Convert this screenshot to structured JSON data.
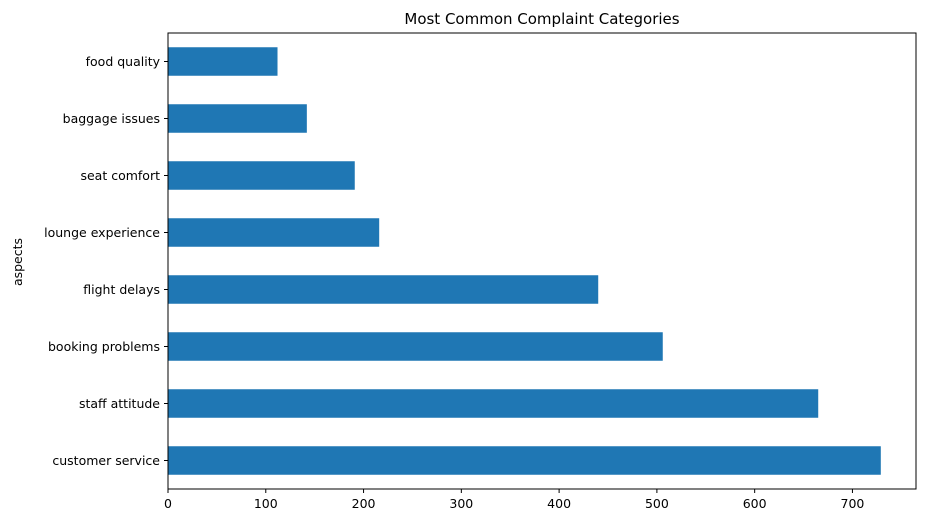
{
  "chart_data": {
    "type": "bar",
    "orientation": "horizontal",
    "title": "Most Common Complaint Categories",
    "xlabel": "",
    "ylabel": "aspects",
    "categories": [
      "customer service",
      "staff attitude",
      "booking problems",
      "flight delays",
      "lounge experience",
      "seat comfort",
      "baggage issues",
      "food quality"
    ],
    "values": [
      729,
      665,
      506,
      440,
      216,
      191,
      142,
      112
    ],
    "xlim": [
      0,
      765
    ],
    "xticks": [
      0,
      100,
      200,
      300,
      400,
      500,
      600,
      700
    ],
    "grid": false,
    "legend": "none",
    "colors": {
      "bar": "#1f77b4",
      "axis": "#000000",
      "background": "#ffffff"
    }
  }
}
